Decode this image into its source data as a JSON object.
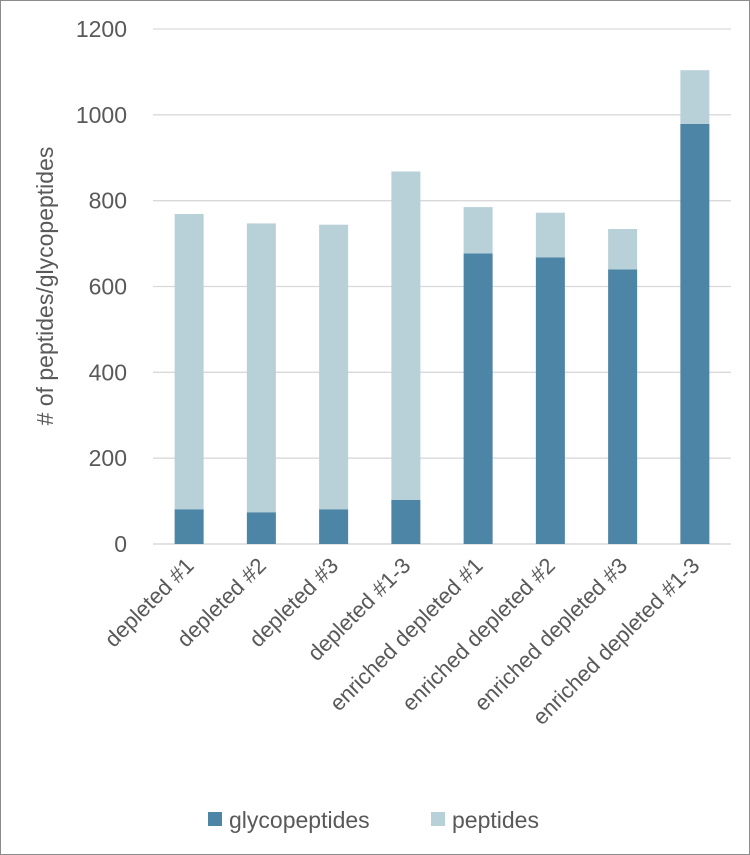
{
  "chart_data": {
    "type": "bar",
    "stacked": true,
    "title": "",
    "xlabel": "",
    "ylabel": "# of peptides/glycopeptides",
    "ylim": [
      0,
      1200
    ],
    "yticks": [
      0,
      200,
      400,
      600,
      800,
      1000,
      1200
    ],
    "grid": true,
    "legend_position": "bottom",
    "categories": [
      "depleted #1",
      "depleted #2",
      "depleted #3",
      "depleted #1-3",
      "enriched depleted #1",
      "enriched depleted #2",
      "enriched depleted #3",
      "enriched depleted #1-3"
    ],
    "series": [
      {
        "name": "glycopeptides",
        "color": "#4c85a5",
        "values": [
          81,
          74,
          81,
          103,
          677,
          668,
          640,
          979
        ]
      },
      {
        "name": "peptides",
        "color": "#b8d0d8",
        "values": [
          688,
          673,
          663,
          765,
          108,
          104,
          94,
          125
        ]
      }
    ]
  }
}
